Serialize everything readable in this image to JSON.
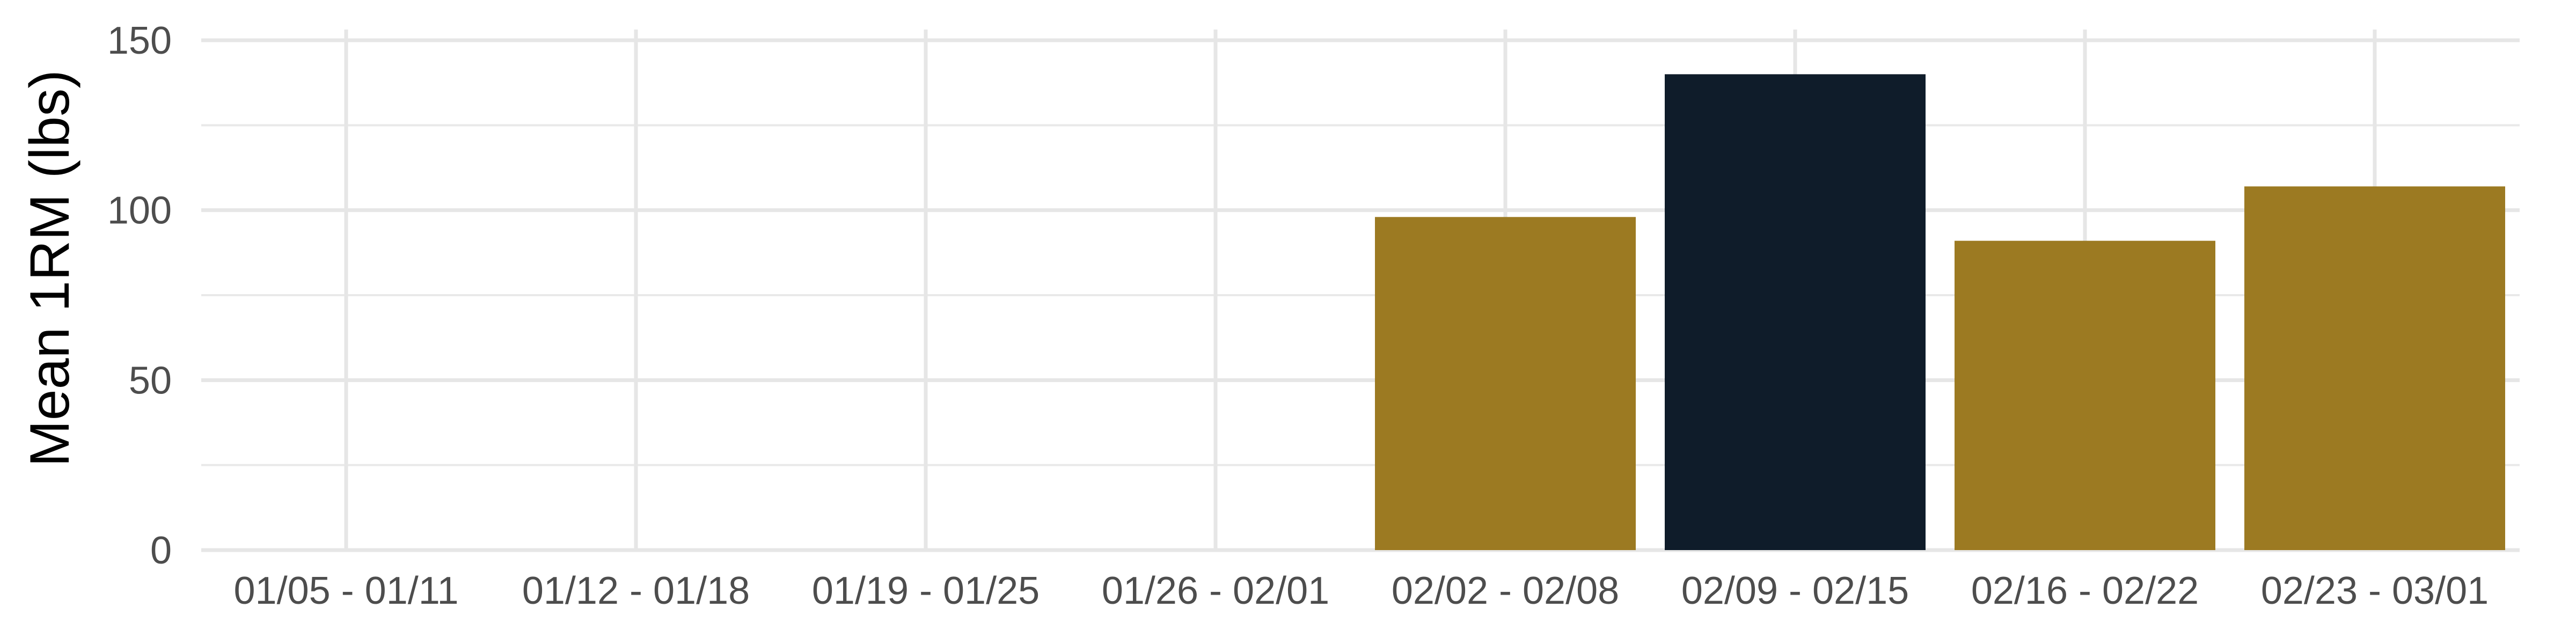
{
  "chart_data": {
    "type": "bar",
    "title": "",
    "xlabel": "",
    "ylabel": "Mean 1RM (lbs)",
    "ylim": [
      0,
      150
    ],
    "yticks": [
      0,
      50,
      100,
      150
    ],
    "grid": true,
    "legend": "none",
    "categories": [
      "01/05 - 01/11",
      "01/12 - 01/18",
      "01/19 - 01/25",
      "01/26 - 02/01",
      "02/02 - 02/08",
      "02/09 - 02/15",
      "02/16 - 02/22",
      "02/23 - 03/01"
    ],
    "values": [
      null,
      null,
      null,
      null,
      98,
      140,
      91,
      107
    ],
    "highlight_index": 5,
    "colors": {
      "bar": "#9c7a22",
      "highlight": "#0f1c2a",
      "grid": "#e6e6e6",
      "tick_text": "#4d4d4d",
      "axis_title": "#000000"
    }
  }
}
